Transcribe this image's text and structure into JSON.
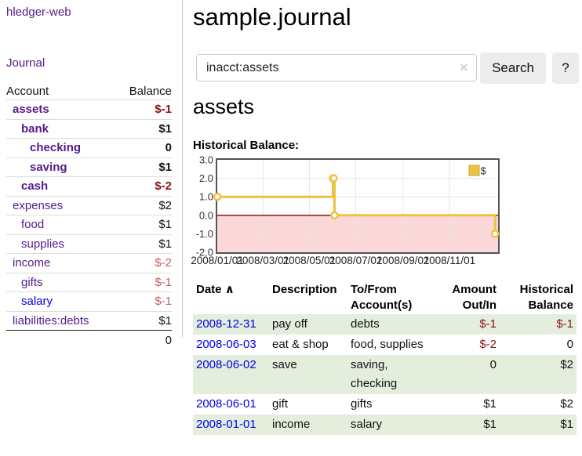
{
  "colors": {
    "purple": "#551a8b",
    "blue": "#0000ee",
    "neg_strong": "#8b1313",
    "neg_soft": "#c06060",
    "text": "#111111",
    "row_green": "#e3eedd",
    "accent_gold": "#edc240"
  },
  "sidebar": {
    "brand": "hledger-web",
    "journal_label": "Journal",
    "columns": {
      "account": "Account",
      "balance": "Balance"
    },
    "accounts": [
      {
        "name": "assets",
        "indent": 0,
        "bold": true,
        "balance": "$-1",
        "balance_tone": "neg-strong",
        "link_tone": "purple"
      },
      {
        "name": "bank",
        "indent": 1,
        "bold": true,
        "balance": "$1",
        "balance_tone": "normal",
        "link_tone": "purple"
      },
      {
        "name": "checking",
        "indent": 2,
        "bold": true,
        "balance": "0",
        "balance_tone": "normal",
        "link_tone": "purple"
      },
      {
        "name": "saving",
        "indent": 2,
        "bold": true,
        "balance": "$1",
        "balance_tone": "normal",
        "link_tone": "purple"
      },
      {
        "name": "cash",
        "indent": 1,
        "bold": true,
        "balance": "$-2",
        "balance_tone": "neg-strong",
        "link_tone": "purple"
      },
      {
        "name": "expenses",
        "indent": 0,
        "bold": false,
        "balance": "$2",
        "balance_tone": "normal",
        "link_tone": "purple"
      },
      {
        "name": "food",
        "indent": 1,
        "bold": false,
        "balance": "$1",
        "balance_tone": "normal",
        "link_tone": "purple"
      },
      {
        "name": "supplies",
        "indent": 1,
        "bold": false,
        "balance": "$1",
        "balance_tone": "normal",
        "link_tone": "purple"
      },
      {
        "name": "income",
        "indent": 0,
        "bold": false,
        "balance": "$-2",
        "balance_tone": "neg-soft",
        "link_tone": "purple"
      },
      {
        "name": "gifts",
        "indent": 1,
        "bold": false,
        "balance": "$-1",
        "balance_tone": "neg-soft",
        "link_tone": "purple"
      },
      {
        "name": "salary",
        "indent": 1,
        "bold": false,
        "balance": "$-1",
        "balance_tone": "neg-soft",
        "link_tone": "blue"
      },
      {
        "name": "liabilities:debts",
        "indent": 0,
        "bold": false,
        "balance": "$1",
        "balance_tone": "normal",
        "link_tone": "purple"
      }
    ],
    "total": "0"
  },
  "header": {
    "title": "sample.journal"
  },
  "search": {
    "value": "inacct:assets",
    "clear_icon": "×",
    "button_label": "Search",
    "help_label": "?"
  },
  "main": {
    "heading": "assets",
    "chart_label": "Historical Balance:"
  },
  "chart_data": {
    "type": "line",
    "title": "Historical Balance:",
    "step": true,
    "series": [
      {
        "name": "$",
        "color": "#edc240",
        "points": [
          {
            "date": "2008/01/01",
            "day": 0,
            "value": 1.0
          },
          {
            "date": "2008/06/01",
            "day": 152,
            "value": 2.0
          },
          {
            "date": "2008/06/02",
            "day": 153,
            "value": 2.0
          },
          {
            "date": "2008/06/03",
            "day": 154,
            "value": 0.0
          },
          {
            "date": "2008/12/31",
            "day": 365,
            "value": -1.0
          }
        ]
      }
    ],
    "ylim": [
      -2.0,
      3.0
    ],
    "yticks": [
      {
        "value": 3,
        "label": "3.0"
      },
      {
        "value": 2,
        "label": "2.0"
      },
      {
        "value": 1,
        "label": "1.0"
      },
      {
        "value": 0,
        "label": "0.0"
      },
      {
        "value": -1,
        "label": "-1.0"
      },
      {
        "value": -2,
        "label": "-2.0"
      }
    ],
    "xlim_days": [
      0,
      369
    ],
    "xticks": [
      {
        "day": 0,
        "label": "2008/01/01"
      },
      {
        "day": 60,
        "label": "2008/03/01"
      },
      {
        "day": 121,
        "label": "2008/05/01"
      },
      {
        "day": 182,
        "label": "2008/07/01"
      },
      {
        "day": 244,
        "label": "2008/09/01"
      },
      {
        "day": 305,
        "label": "2008/11/01"
      }
    ],
    "legend": {
      "label": "$",
      "position": "top-right"
    },
    "grid": true,
    "style": {
      "line_color": "#edc240",
      "legend_box_border": "#c9a22f",
      "marker_fill": "#ffffff",
      "negative_region": "#fbd7d7",
      "zero_line": "#8b0000",
      "gridline": "#e6e6e6",
      "border": "#545454",
      "tick_text": "#333333"
    }
  },
  "register": {
    "columns": [
      "Date",
      "Description",
      "To/From Account(s)",
      "Amount Out/In",
      "Historical Balance"
    ],
    "sort_icon": "∧",
    "rows": [
      {
        "date": "2008-12-31",
        "description": "pay off",
        "accounts": "debts",
        "amount": "$-1",
        "balance": "$-1"
      },
      {
        "date": "2008-06-03",
        "description": "eat & shop",
        "accounts": "food, supplies",
        "amount": "$-2",
        "balance": "0"
      },
      {
        "date": "2008-06-02",
        "description": "save",
        "accounts": "saving, checking",
        "amount": "0",
        "balance": "$2"
      },
      {
        "date": "2008-06-01",
        "description": "gift",
        "accounts": "gifts",
        "amount": "$1",
        "balance": "$2"
      },
      {
        "date": "2008-01-01",
        "description": "income",
        "accounts": "salary",
        "amount": "$1",
        "balance": "$1"
      }
    ]
  }
}
